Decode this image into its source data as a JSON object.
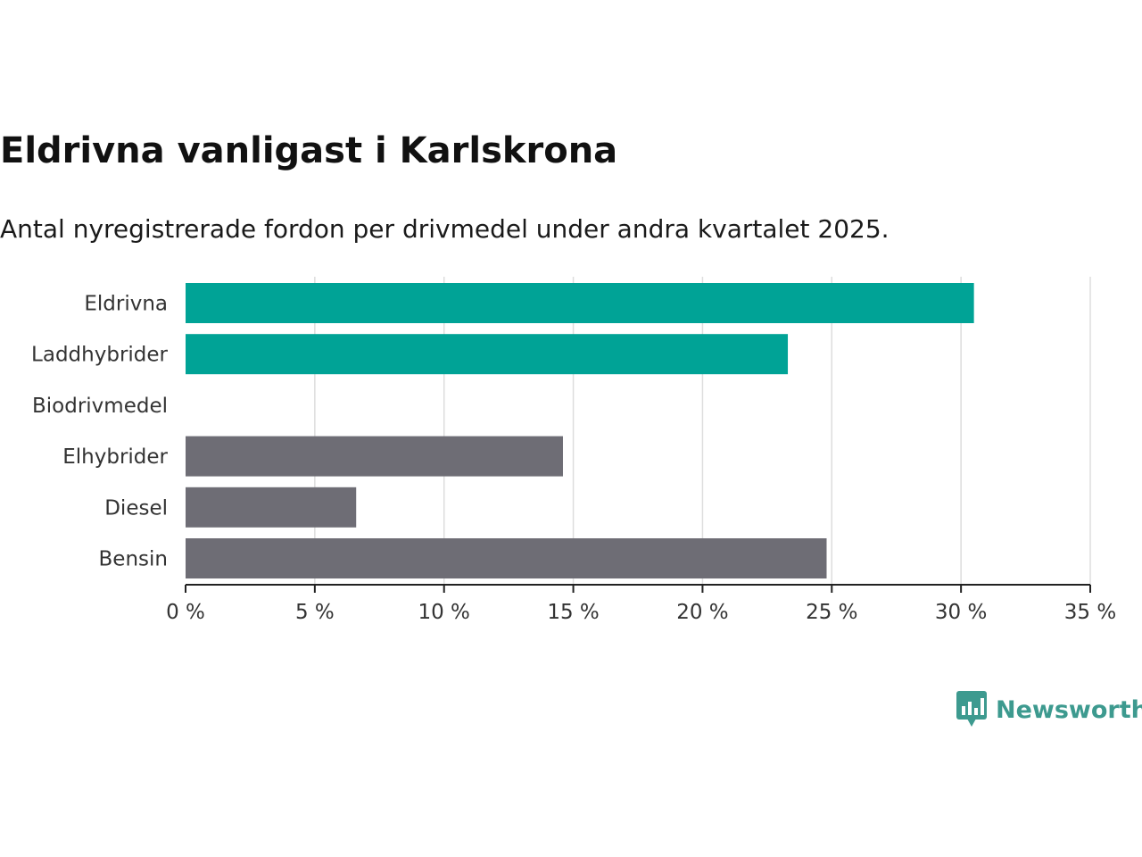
{
  "title": "Eldrivna vanligast i Karlskrona",
  "subtitle": "Antal nyregistrerade fordon per drivmedel under andra kvartalet 2025.",
  "brand": {
    "name": "Newsworthy",
    "color": "#3d9a8f"
  },
  "colors": {
    "highlight": "#00a396",
    "other": "#6e6d75",
    "grid": "#dddddd",
    "axis": "#222222"
  },
  "chart_data": {
    "type": "bar",
    "orientation": "horizontal",
    "categories": [
      "Eldrivna",
      "Laddhybrider",
      "Biodrivmedel",
      "Elhybrider",
      "Diesel",
      "Bensin"
    ],
    "values": [
      30.5,
      23.3,
      0,
      14.6,
      6.6,
      24.8
    ],
    "highlighted": [
      true,
      true,
      true,
      false,
      false,
      false
    ],
    "xlim": [
      0,
      35
    ],
    "xticks": [
      0,
      5,
      10,
      15,
      20,
      25,
      30,
      35
    ],
    "tick_suffix": " %",
    "grid": true
  }
}
